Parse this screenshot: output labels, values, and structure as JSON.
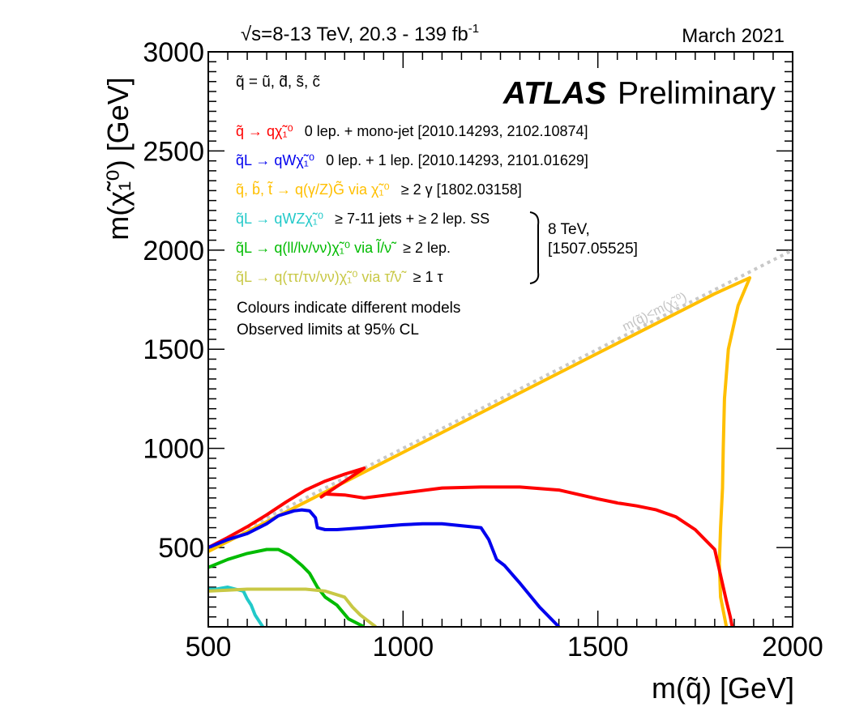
{
  "header": {
    "energy_label": "√s=8-13 TeV, 20.3 - 139 fb",
    "energy_sup": "-1",
    "date": "March 2021"
  },
  "chart_data": {
    "type": "line",
    "title": "",
    "xlabel": "m(q̃) [GeV]",
    "ylabel": "m(χ̃₁⁰) [GeV]",
    "xlim": [
      500,
      2000
    ],
    "ylim": [
      100,
      3000
    ],
    "x_ticks": [
      500,
      1000,
      1500,
      2000
    ],
    "x_tick_labels": [
      "500",
      "1000",
      "1500",
      "2000"
    ],
    "y_ticks": [
      500,
      1000,
      1500,
      2000,
      2500,
      3000
    ],
    "y_tick_labels": [
      "500",
      "1000",
      "1500",
      "2000",
      "2500",
      "3000"
    ],
    "grid": false,
    "experiment": {
      "bold": "ATLAS",
      "rest": "Preliminary"
    },
    "squark_definition": "q̃ = ũ, d̃, s̃, c̃",
    "legend_placement": "top-left",
    "legend": [
      {
        "process": "q̃ → qχ̃₁⁰",
        "analysis": "0 lep. + mono-jet [2010.14293, 2102.10874]",
        "color": "#ff0000"
      },
      {
        "process": "q̃L → qWχ̃₁⁰",
        "analysis": "0 lep. + 1 lep. [2010.14293, 2101.01629]",
        "color": "#0000ee"
      },
      {
        "process": "q̃, b̃, t̃ → q(γ/Z)G̃ via χ̃₁⁰",
        "analysis": "≥ 2 γ [1802.03158]",
        "color": "#ffbf00"
      },
      {
        "process": "q̃L → qWZχ̃₁⁰",
        "analysis": "≥ 7-11 jets + ≥ 2 lep. SS",
        "color": "#22c9c9"
      },
      {
        "process": "q̃L → q(ll/lν/νν)χ̃₁⁰ via l̃/ν̃",
        "analysis": "≥ 2 lep.",
        "color": "#00bb00"
      },
      {
        "process": "q̃L → q(ττ/τν/νν)χ̃₁⁰ via τ̃/ν̃",
        "analysis": "≥ 1 τ",
        "color": "#c8c845"
      }
    ],
    "bracket_note": [
      "8 TeV,",
      "[1507.05525]"
    ],
    "notes": [
      "Colours indicate different models",
      "Observed limits at 95% CL"
    ],
    "diagonal_label": "m(q̃)<m(χ̃₁⁰)",
    "diagonal": {
      "x": [
        500,
        2000
      ],
      "y": [
        500,
        2000
      ],
      "color": "#c8c8c8"
    },
    "series": [
      {
        "color": "#ffbf00",
        "x": [
          500,
          550,
          600,
          650,
          700,
          750,
          800,
          850,
          900,
          950,
          1000,
          1100,
          1200,
          1300,
          1400,
          1500,
          1600,
          1700,
          1800,
          1890,
          1860,
          1835,
          1825,
          1822,
          1820,
          1815,
          1812,
          1815,
          1825,
          1830
        ],
        "y": [
          480,
          530,
          580,
          630,
          680,
          730,
          780,
          830,
          880,
          930,
          980,
          1080,
          1180,
          1280,
          1380,
          1480,
          1580,
          1680,
          1780,
          1860,
          1720,
          1500,
          1250,
          1000,
          800,
          600,
          420,
          250,
          150,
          100
        ]
      },
      {
        "color": "#ff0000",
        "x": [
          500,
          550,
          600,
          650,
          700,
          750,
          800,
          850,
          900,
          900,
          790,
          800,
          850,
          900,
          1000,
          1100,
          1200,
          1300,
          1400,
          1500,
          1550,
          1600,
          1650,
          1700,
          1750,
          1800,
          1815,
          1830,
          1840,
          1845
        ],
        "y": [
          500,
          550,
          605,
          665,
          730,
          790,
          835,
          870,
          900,
          900,
          755,
          770,
          765,
          750,
          775,
          800,
          805,
          805,
          790,
          745,
          725,
          710,
          690,
          655,
          590,
          490,
          360,
          230,
          150,
          100
        ]
      },
      {
        "color": "#0000ee",
        "x": [
          500,
          550,
          600,
          650,
          680,
          720,
          740,
          760,
          775,
          780,
          790,
          800,
          830,
          900,
          1000,
          1050,
          1100,
          1200,
          1220,
          1240,
          1260,
          1300,
          1350,
          1400
        ],
        "y": [
          500,
          540,
          570,
          620,
          660,
          685,
          690,
          685,
          650,
          600,
          595,
          590,
          590,
          600,
          615,
          620,
          620,
          600,
          540,
          440,
          410,
          320,
          200,
          100
        ]
      },
      {
        "color": "#00bb00",
        "x": [
          500,
          550,
          600,
          650,
          680,
          710,
          740,
          760,
          780,
          800,
          830,
          860,
          900
        ],
        "y": [
          400,
          440,
          470,
          490,
          490,
          460,
          410,
          370,
          300,
          250,
          210,
          140,
          100
        ]
      },
      {
        "color": "#22c9c9",
        "x": [
          500,
          520,
          550,
          570,
          590,
          600,
          610,
          620,
          630,
          640
        ],
        "y": [
          290,
          290,
          300,
          290,
          280,
          240,
          210,
          160,
          130,
          100
        ]
      },
      {
        "color": "#c8c845",
        "x": [
          500,
          550,
          600,
          650,
          700,
          750,
          800,
          850,
          870,
          890,
          910,
          930
        ],
        "y": [
          280,
          285,
          290,
          290,
          290,
          290,
          280,
          250,
          200,
          160,
          130,
          100
        ]
      }
    ]
  }
}
